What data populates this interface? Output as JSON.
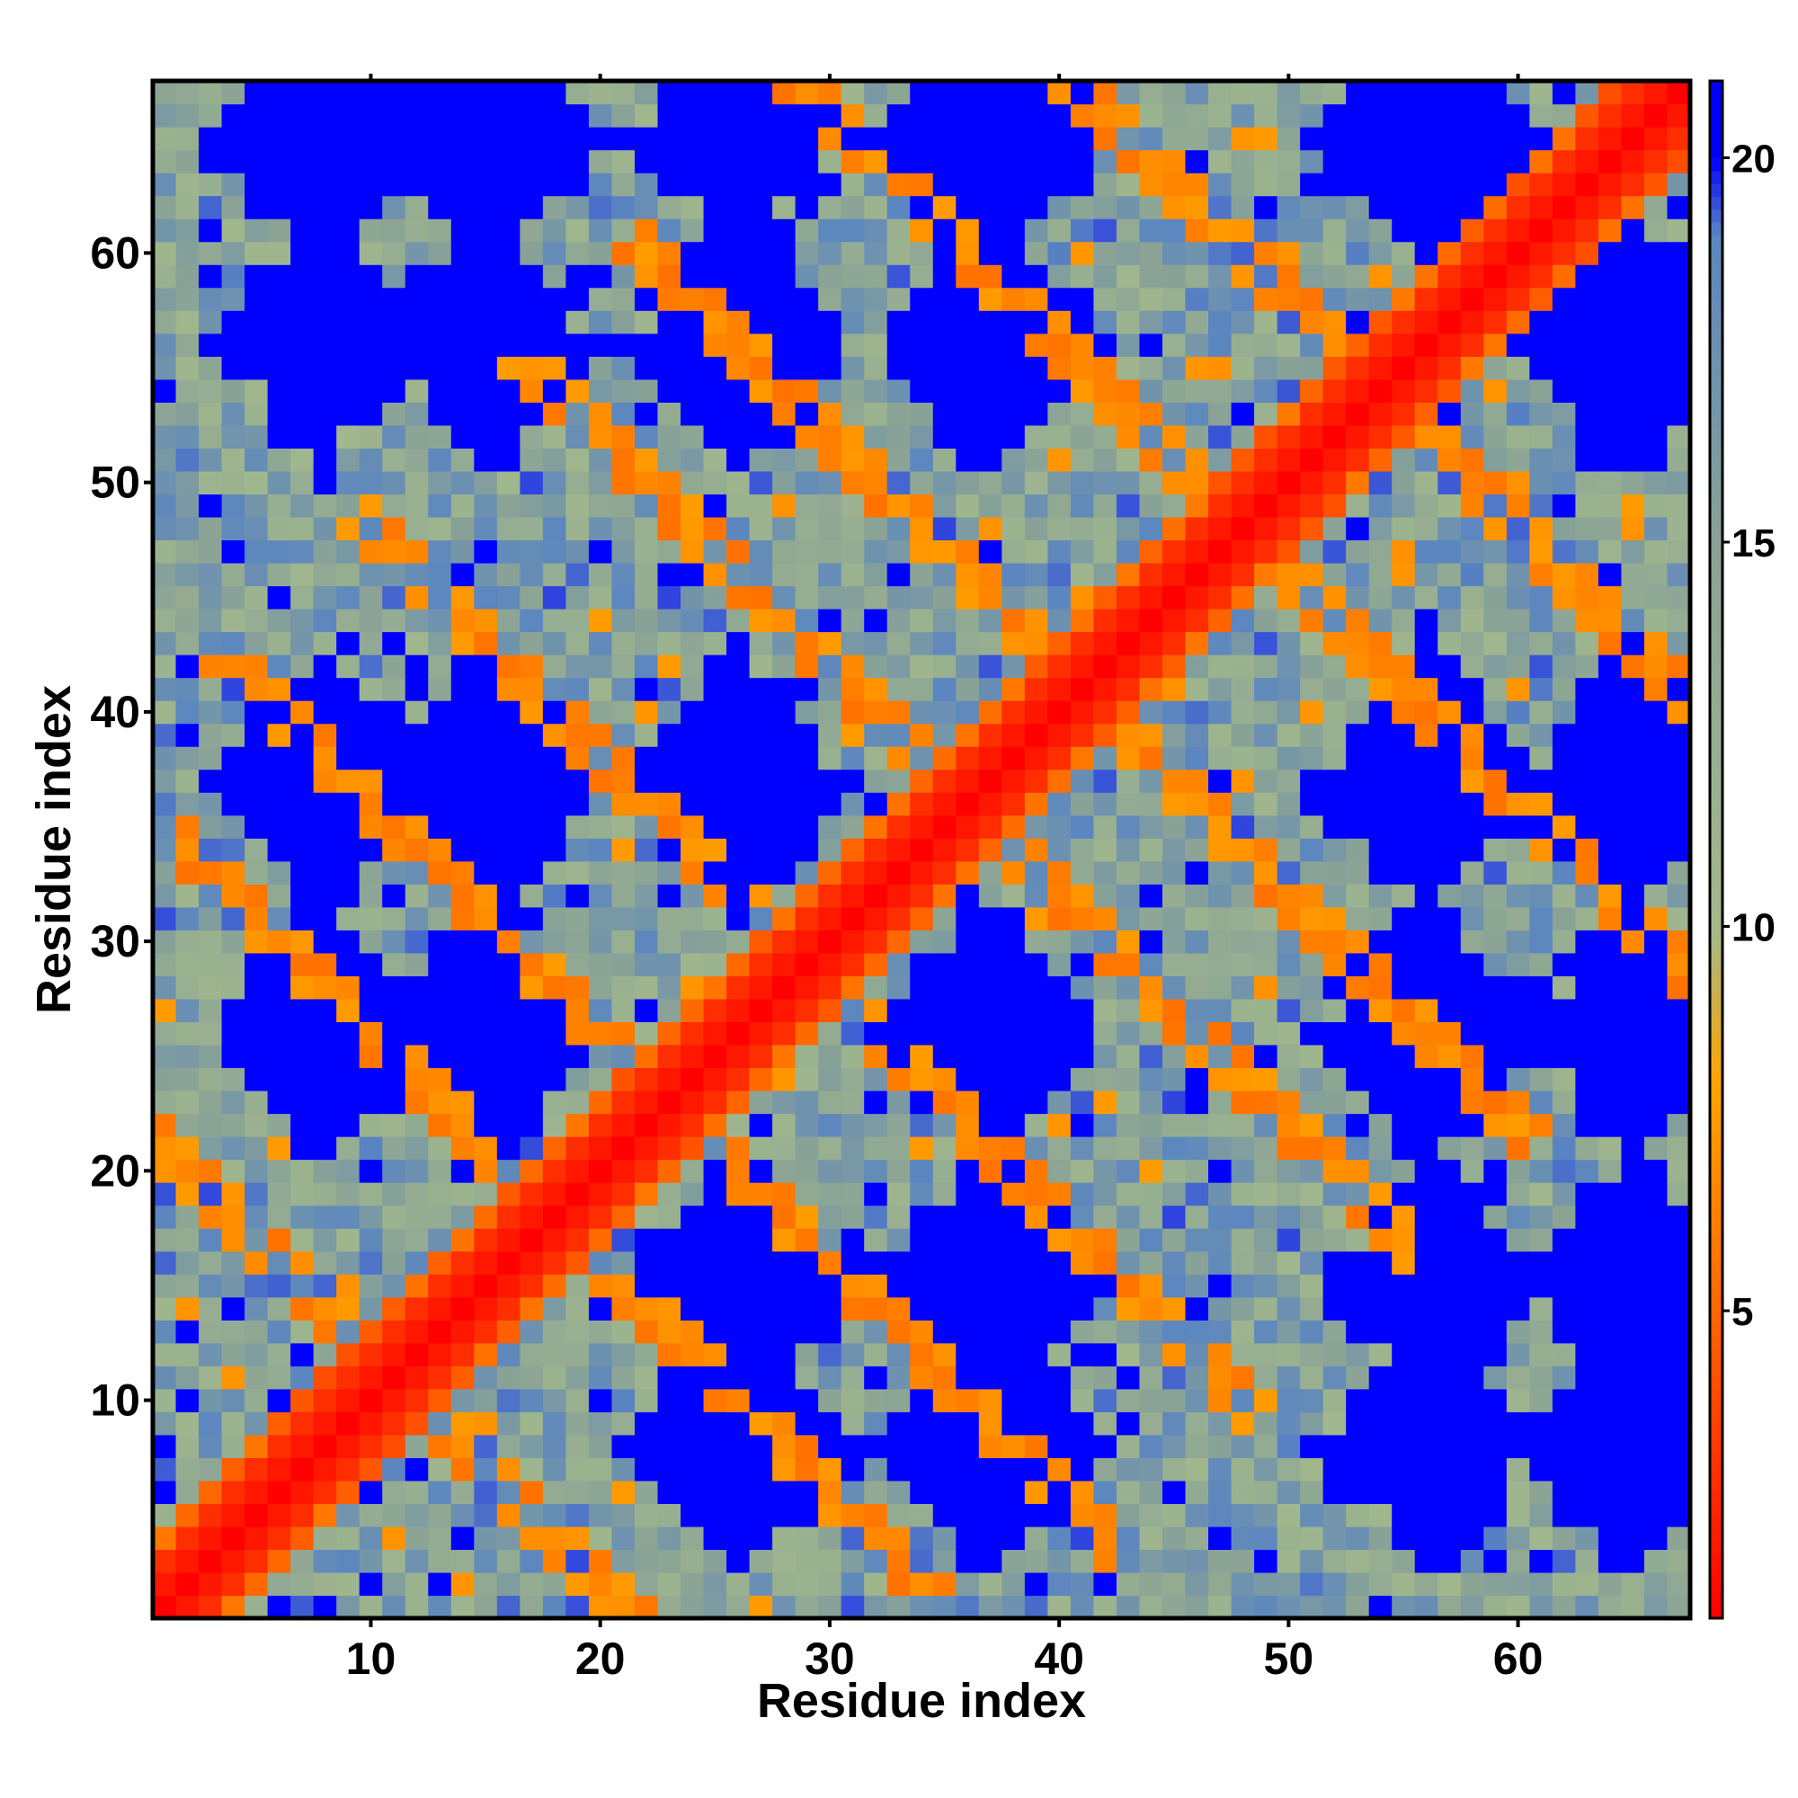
{
  "chart_data": {
    "type": "heatmap",
    "xlabel": "Residue index",
    "ylabel": "Residue index",
    "n": 67,
    "xlim": [
      1,
      67
    ],
    "ylim": [
      1,
      67
    ],
    "x_ticks": [
      10,
      20,
      30,
      40,
      50,
      60
    ],
    "y_ticks": [
      10,
      20,
      30,
      40,
      50,
      60
    ],
    "colorbar": {
      "range": [
        1,
        21
      ],
      "ticks": [
        5,
        10,
        15,
        20
      ],
      "stops": [
        {
          "value": 1,
          "color": "#ff0000"
        },
        {
          "value": 5,
          "color": "#ff6600"
        },
        {
          "value": 8,
          "color": "#ffa500"
        },
        {
          "value": 10,
          "color": "#a3b98c"
        },
        {
          "value": 15,
          "color": "#8aa396"
        },
        {
          "value": 19,
          "color": "#5b86c0"
        },
        {
          "value": 20,
          "color": "#0000ff"
        }
      ]
    },
    "grid": false,
    "description_of_values": "symmetric residue-residue distance map"
  }
}
